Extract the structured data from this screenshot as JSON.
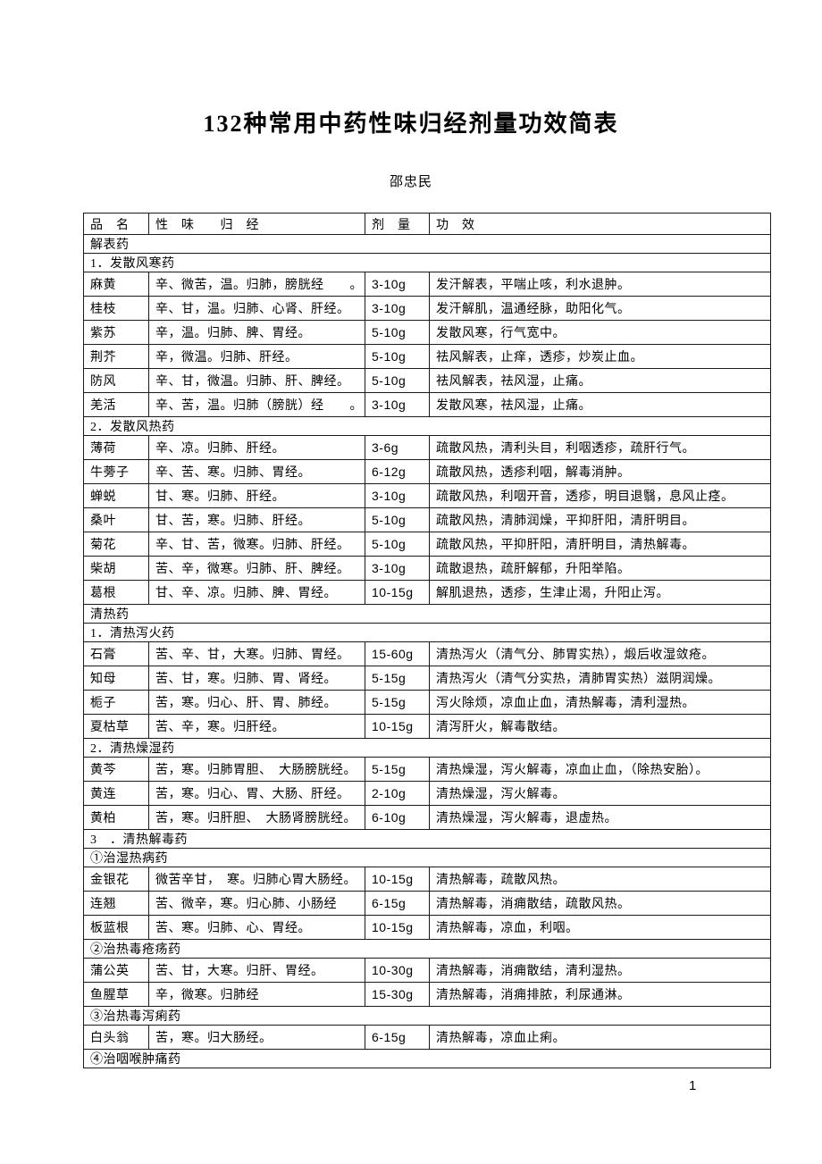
{
  "doc": {
    "title": "132种常用中药性味归经剂量功效简表",
    "author": "邵忠民",
    "page_number": "1"
  },
  "table": {
    "header": {
      "name": "品　名",
      "flavor": "性　味　　归　经",
      "dosage": "剂　量",
      "effect": "功　效"
    },
    "rows": [
      {
        "type": "section",
        "text": "解表药"
      },
      {
        "type": "section",
        "text": "1．发散风寒药"
      },
      {
        "type": "drug",
        "name": "麻黄",
        "flavor": "辛、微苦，温。归肺，膀胱经　　。",
        "dosage": "3-10g",
        "effect": "发汗解表，平喘止咳，利水退肿。"
      },
      {
        "type": "drug",
        "name": "桂枝",
        "flavor": "辛、甘，温。归肺、心肾、肝经。",
        "dosage": "3-10g",
        "effect": "发汗解肌，温通经脉，助阳化气。"
      },
      {
        "type": "drug",
        "name": "紫苏",
        "flavor": "辛，温。归肺、脾、胃经。",
        "dosage": "5-10g",
        "effect": "发散风寒，行气宽中。"
      },
      {
        "type": "drug",
        "name": "荆芥",
        "flavor": "辛，微温。归肺、肝经。",
        "dosage": "5-10g",
        "effect": "祛风解表，止痒，透疹，炒炭止血。"
      },
      {
        "type": "drug",
        "name": "防风",
        "flavor": "辛、甘，微温。归肺、肝、脾经。",
        "dosage": "5-10g",
        "effect": "祛风解表，祛风湿，止痛。"
      },
      {
        "type": "drug",
        "name": "羌活",
        "flavor": "辛、苦，温。归肺（膀胱）经　　。",
        "dosage": "3-10g",
        "effect": "发散风寒，祛风湿，止痛。"
      },
      {
        "type": "section",
        "text": "2．发散风热药"
      },
      {
        "type": "drug",
        "name": "薄荷",
        "flavor": "辛、凉。归肺、肝经。",
        "dosage": "3-6g",
        "effect": "疏散风热，清利头目，利咽透疹，疏肝行气。"
      },
      {
        "type": "drug",
        "name": "牛蒡子",
        "flavor": "辛、苦、寒。归肺、胃经。",
        "dosage": "6-12g",
        "effect": "疏散风热，透疹利咽，解毒消肿。"
      },
      {
        "type": "drug",
        "name": "蝉蜕",
        "flavor": "甘、寒。归肺、肝经。",
        "dosage": "3-10g",
        "effect": "疏散风热，利咽开音，透疹，明目退翳，息风止痉。"
      },
      {
        "type": "drug",
        "name": "桑叶",
        "flavor": "甘、苦，寒。归肺、肝经。",
        "dosage": "5-10g",
        "effect": "疏散风热，清肺润燥，平抑肝阳，清肝明目。"
      },
      {
        "type": "drug",
        "name": "菊花",
        "flavor": "辛、甘、苦，微寒。归肺、肝经。",
        "dosage": "5-10g",
        "effect": "疏散风热，平抑肝阳，清肝明目，清热解毒。"
      },
      {
        "type": "drug",
        "name": "柴胡",
        "flavor": "苦、辛，微寒。归肺、肝、脾经。",
        "dosage": "3-10g",
        "effect": "疏散退热，疏肝解郁，升阳举陷。"
      },
      {
        "type": "drug",
        "name": "葛根",
        "flavor": "甘、辛、凉。归肺、脾、胃经。",
        "dosage": "10-15g",
        "effect": "解肌退热，透疹，生津止渴，升阳止泻。"
      },
      {
        "type": "section",
        "text": "清热药"
      },
      {
        "type": "section",
        "text": "1．清热泻火药"
      },
      {
        "type": "drug",
        "name": "石膏",
        "flavor": "苦、辛、甘，大寒。归肺、胃经。",
        "dosage": "15-60g",
        "effect": "清热泻火（清气分、肺胃实热），煅后收湿敛疮。"
      },
      {
        "type": "drug",
        "name": "知母",
        "flavor": "苦、甘，寒。归肺、胃、肾经。",
        "dosage": "5-15g",
        "effect": "清热泻火（清气分实热，清肺胃实热）滋阴润燥。"
      },
      {
        "type": "drug",
        "name": "栀子",
        "flavor": "苦，寒。归心、肝、胃、肺经。",
        "dosage": "5-15g",
        "effect": "泻火除烦，凉血止血，清热解毒，清利湿热。"
      },
      {
        "type": "drug",
        "name": "夏枯草",
        "flavor": "苦、辛，寒。归肝经。",
        "dosage": "10-15g",
        "effect": "清泻肝火，解毒散结。"
      },
      {
        "type": "section",
        "text": "2．清热燥湿药"
      },
      {
        "type": "drug",
        "name": "黄芩",
        "flavor": "苦，寒。归肺胃胆、　大肠膀胱经。",
        "dosage": "5-15g",
        "effect": "清热燥湿，泻火解毒，凉血止血，（除热安胎）。"
      },
      {
        "type": "drug",
        "name": "黄连",
        "flavor": "苦，寒。归心、胃、大肠、肝经。",
        "dosage": "2-10g",
        "effect": "清热燥湿，泻火解毒。"
      },
      {
        "type": "drug",
        "name": "黄柏",
        "flavor": "苦，寒。归肝胆、　大肠肾膀胱经。",
        "dosage": "6-10g",
        "effect": "清热燥湿，泻火解毒，退虚热。"
      },
      {
        "type": "section",
        "text": "3　．清热解毒药"
      },
      {
        "type": "section",
        "text": "①治湿热病药"
      },
      {
        "type": "drug",
        "name": "金银花",
        "flavor": "微苦辛甘，　寒。归肺心胃大肠经。",
        "dosage": "10-15g",
        "effect": "清热解毒，疏散风热。"
      },
      {
        "type": "drug",
        "name": "连翘",
        "flavor": "苦、微辛，寒。归心肺、小肠经",
        "dosage": "6-15g",
        "effect": "清热解毒，消痈散结，疏散风热。"
      },
      {
        "type": "drug",
        "name": "板蓝根",
        "flavor": "苦、寒。归肺、心、胃经。",
        "dosage": "10-15g",
        "effect": "清热解毒，凉血，利咽。"
      },
      {
        "type": "section",
        "text": "②治热毒疮疡药"
      },
      {
        "type": "drug",
        "name": "蒲公英",
        "flavor": "苦、甘，大寒。归肝、胃经。",
        "dosage": "10-30g",
        "effect": "清热解毒，消痈散结，清利湿热。"
      },
      {
        "type": "drug",
        "name": "鱼腥草",
        "flavor": "辛，微寒。归肺经",
        "dosage": "15-30g",
        "effect": "清热解毒，消痈排脓，利尿通淋。"
      },
      {
        "type": "section",
        "text": "③治热毒泻痢药"
      },
      {
        "type": "drug",
        "name": "白头翁",
        "flavor": "苦，寒。归大肠经。",
        "dosage": "6-15g",
        "effect": "清热解毒，凉血止痢。"
      },
      {
        "type": "section",
        "text": "④治咽喉肿痛药"
      }
    ]
  }
}
